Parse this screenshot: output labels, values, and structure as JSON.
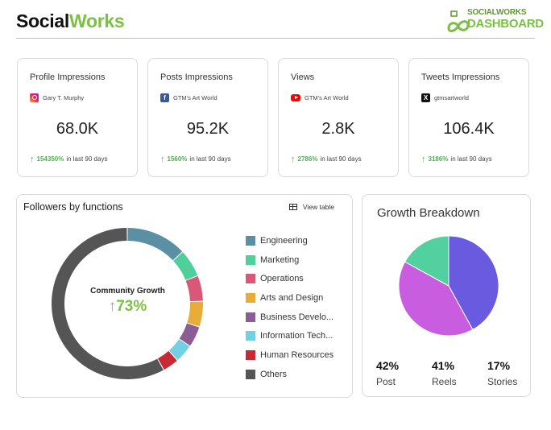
{
  "header": {
    "brand_part1": "Social",
    "brand_part2": "Works",
    "logo_line1": "SOCIALWORKS",
    "logo_line2": "DASHBOARD"
  },
  "kpis": [
    {
      "title": "Profile Impressions",
      "source": "Gary T. Murphy",
      "source_icon": "instagram-icon",
      "value": "68.0K",
      "change_pct": "154350%",
      "change_suffix": "in last 90 days"
    },
    {
      "title": "Posts Impressions",
      "source": "GTM's Art World",
      "source_icon": "facebook-icon",
      "value": "95.2K",
      "change_pct": "1560%",
      "change_suffix": "in last 90 days"
    },
    {
      "title": "Views",
      "source": "GTM's Art World",
      "source_icon": "youtube-icon",
      "value": "2.8K",
      "change_pct": "2786%",
      "change_suffix": "in last 90 days"
    },
    {
      "title": "Tweets Impressions",
      "source": "gtmsartworld",
      "source_icon": "x-icon",
      "value": "106.4K",
      "change_pct": "3186%",
      "change_suffix": "in last 90 days"
    }
  ],
  "followers": {
    "title": "Followers by functions",
    "view_table_label": "View table",
    "center_label": "Community Growth",
    "center_value": "73%",
    "legend": [
      {
        "label": "Engineering",
        "color": "#5b8fa3"
      },
      {
        "label": "Marketing",
        "color": "#4fcf9c"
      },
      {
        "label": "Operations",
        "color": "#d9587a"
      },
      {
        "label": "Arts and Design",
        "color": "#e8ac38"
      },
      {
        "label": "Business Develo...",
        "color": "#8c5c94"
      },
      {
        "label": "Information Tech...",
        "color": "#71d1e1"
      },
      {
        "label": "Human Resources",
        "color": "#c82a34"
      },
      {
        "label": "Others",
        "color": "#555555"
      }
    ],
    "share_pct": [
      13,
      6,
      5.5,
      5.5,
      4.5,
      4,
      3.5,
      58
    ]
  },
  "growth": {
    "title": "Growth Breakdown",
    "stats": [
      {
        "value": "42%",
        "label": "Post",
        "share": 42,
        "color": "#6a5ae0"
      },
      {
        "value": "41%",
        "label": "Reels",
        "share": 41,
        "color": "#c95de0"
      },
      {
        "value": "17%",
        "label": "Stories",
        "share": 17,
        "color": "#52d0a0"
      }
    ]
  }
}
